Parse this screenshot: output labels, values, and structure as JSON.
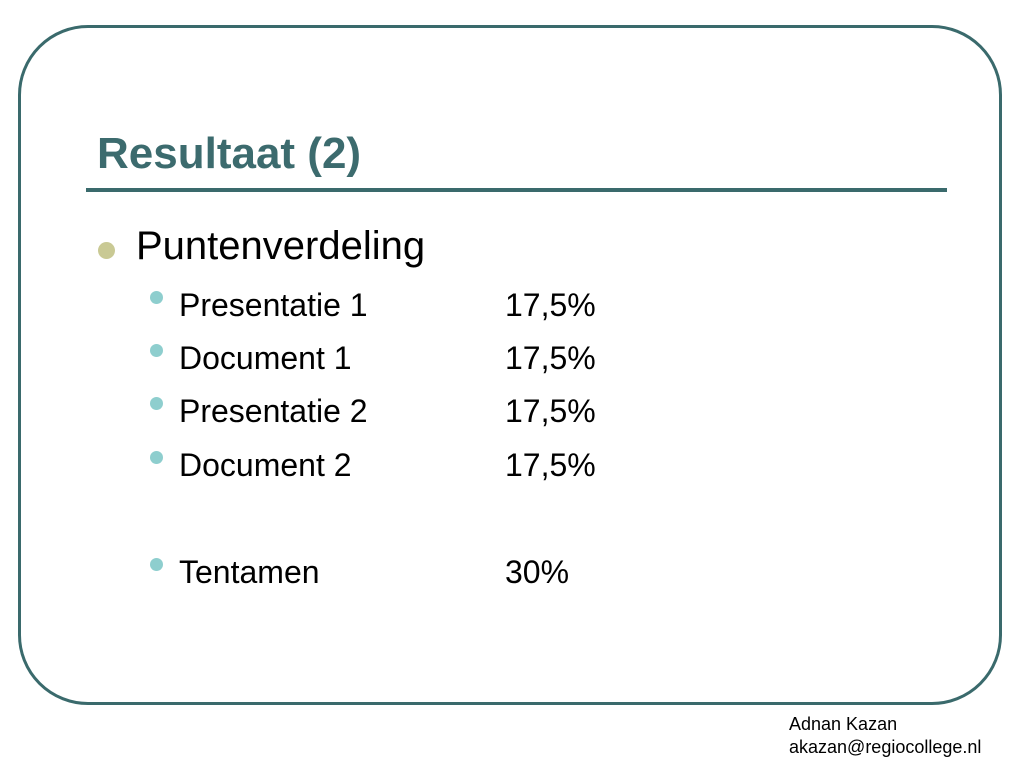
{
  "slide": {
    "title": "Resultaat (2)",
    "bullet": "Puntenverdeling",
    "items": [
      {
        "label": "Presentatie 1",
        "value": "17,5%"
      },
      {
        "label": "Document 1",
        "value": "17,5%"
      },
      {
        "label": "Presentatie 2",
        "value": "17,5%"
      },
      {
        "label": "Document 2",
        "value": "17,5%"
      },
      {
        "label": "Tentamen",
        "value": "30%"
      }
    ]
  },
  "footer": {
    "author": "Adnan Kazan",
    "email": "akazan@regiocollege.nl"
  },
  "colors": {
    "accent": "#3c6b6e",
    "frame": "#3a6a6c",
    "bullet_level1": "#c9c994",
    "bullet_level2": "#8ecece"
  }
}
